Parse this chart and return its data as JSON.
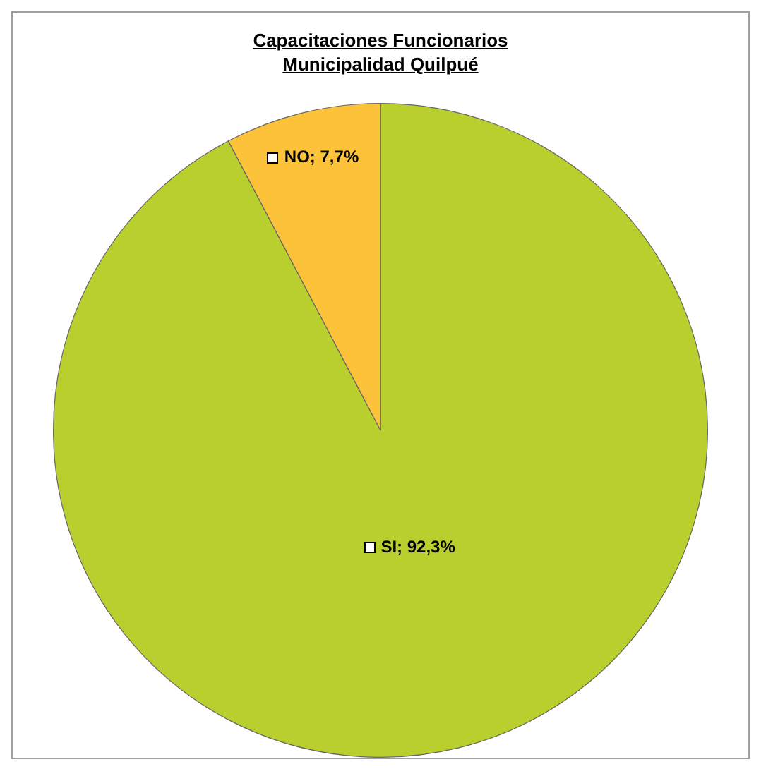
{
  "chart_data": {
    "type": "pie",
    "title": "Capacitaciones Funcionarios\nMunicipalidad Quilpué",
    "categories": [
      "SI",
      "NO"
    ],
    "values": [
      92.3,
      7.7
    ],
    "colors": [
      "#b8cf2e",
      "#fbc23a"
    ],
    "value_labels": [
      "92,3%",
      "7,7%"
    ],
    "legend": false
  }
}
